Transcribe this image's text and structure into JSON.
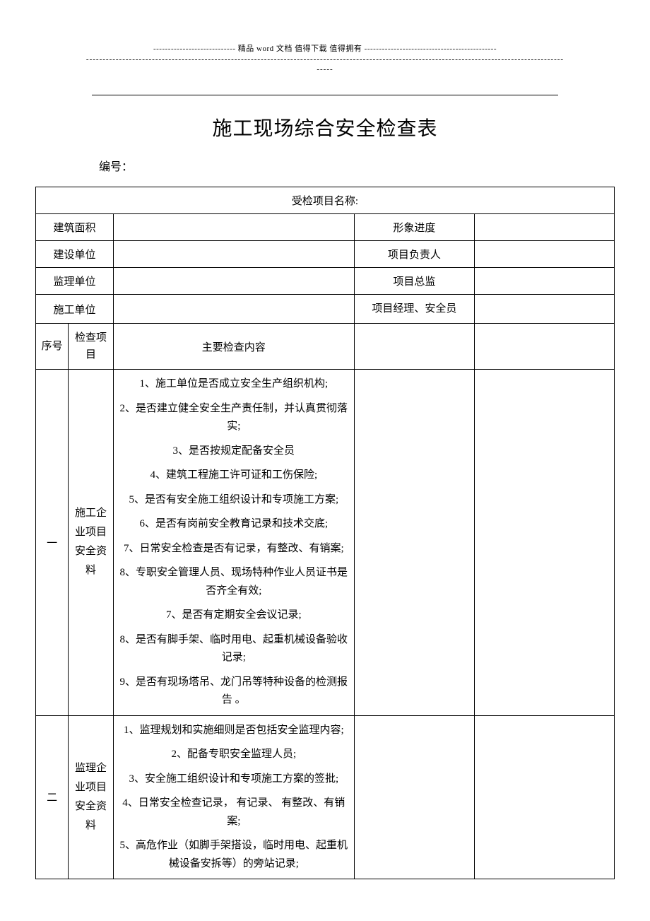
{
  "header": {
    "line1": "---------------------------- 精品 word 文档  值得下载  值得拥有 ---------------------------------------------",
    "line2": "-------------------------------------------------------------------------------------------------------------------------------------------------",
    "line3": "-----"
  },
  "title": "施工现场综合安全检查表",
  "serial_label": "编号：",
  "rows": {
    "project_name_label": "受检项目名称:",
    "building_area": "建筑面积",
    "progress": "形象进度",
    "construction_unit": "建设单位",
    "project_leader": "项目负责人",
    "supervision_unit": "监理单位",
    "project_supervisor": "项目总监",
    "contractor_unit": "施工单位",
    "pm_safety": "项目经理、安全员",
    "seq": "序号",
    "check_item": "检查项目",
    "main_content": "主要检查内容"
  },
  "sections": [
    {
      "seq": "一",
      "item": "施工企业项目安全资料",
      "content": [
        "1、施工单位是否成立安全生产组织机构;",
        "2、是否建立健全安全生产责任制，并认真贯彻落实;",
        "3、是否按规定配备安全员",
        "4、建筑工程施工许可证和工伤保险;",
        "5、是否有安全施工组织设计和专项施工方案;",
        "6、是否有岗前安全教育记录和技术交底;",
        "7、日常安全检查是否有记录，有整改、有销案;",
        "8、专职安全管理人员、现场特种作业人员证书是否齐全有效;",
        "7、是否有定期安全会议记录;",
        "8、是否有脚手架、临时用电、起重机械设备验收记录;",
        "9、是否有现场塔吊、龙门吊等特种设备的检测报告 。"
      ]
    },
    {
      "seq": "二",
      "item": "监理企业项目安全资料",
      "content": [
        "1、监理规划和实施细则是否包括安全监理内容;",
        "2、配备专职安全监理人员;",
        "3、安全施工组织设计和专项施工方案的签批;",
        "4、日常安全检查记录，  有记录、 有整改、有销案;",
        "5、高危作业（如脚手架搭设，临时用电、起重机械设备安拆等）的旁站记录;"
      ]
    }
  ],
  "style": {
    "background_color": "#ffffff",
    "text_color": "#000000",
    "border_color": "#000000",
    "title_fontsize": 28,
    "body_fontsize": 15,
    "content_fontsize": 14,
    "header_fontsize": 11
  }
}
